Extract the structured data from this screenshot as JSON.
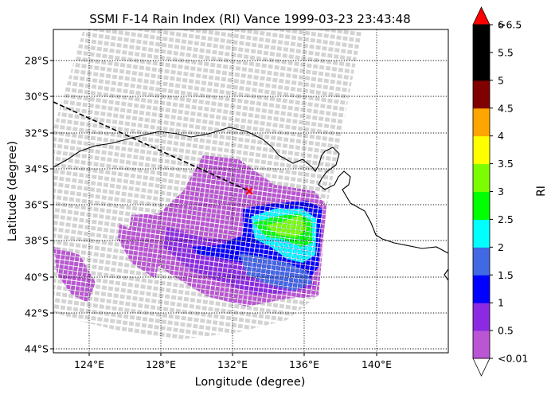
{
  "title": "SSMI F-14 Rain Index (RI) Vance 1999-03-23 23:43:48",
  "xlabel": "Longitude (degree)",
  "ylabel": "Latitude (degree)",
  "colorbar_label": "RI",
  "lon_ticks": [
    "124°E",
    "128°E",
    "132°E",
    "136°E",
    "140°E"
  ],
  "lat_ticks": [
    "28°S",
    "30°S",
    "32°S",
    "34°S",
    "36°S",
    "38°S",
    "40°S",
    "42°S",
    "44°S"
  ],
  "colorbar": {
    "labels": [
      "<0.01",
      "0.5",
      "1",
      "1.5",
      "2",
      "2.5",
      "3",
      "3.5",
      "4",
      "4.5",
      "5",
      "5.5",
      "6",
      ">6.5"
    ],
    "colors": [
      "#ba55d3",
      "#8a2be2",
      "#0000ff",
      "#4169e1",
      "#00ffff",
      "#00ff00",
      "#7cfc00",
      "#ffff00",
      "#ffa500",
      "#800000",
      "#000000",
      "#000000",
      "#ff0000"
    ],
    "under_color": "#ffffff",
    "over_color": "#ff0000"
  },
  "swath_color": "#d3d3d3",
  "track_marker_color": "#ff0000",
  "chart_data": {
    "type": "map",
    "title": "SSMI F-14 Rain Index (RI) Vance 1999-03-23 23:43:48",
    "xlabel": "Longitude (degree)",
    "ylabel": "Latitude (degree)",
    "xlim": [
      122,
      144
    ],
    "ylim": [
      -44.2,
      -26.3
    ],
    "grid": true,
    "storm_track": [
      [
        122,
        -30.3
      ],
      [
        133,
        -35.2
      ]
    ],
    "storm_position": [
      133,
      -35.2
    ]
  }
}
